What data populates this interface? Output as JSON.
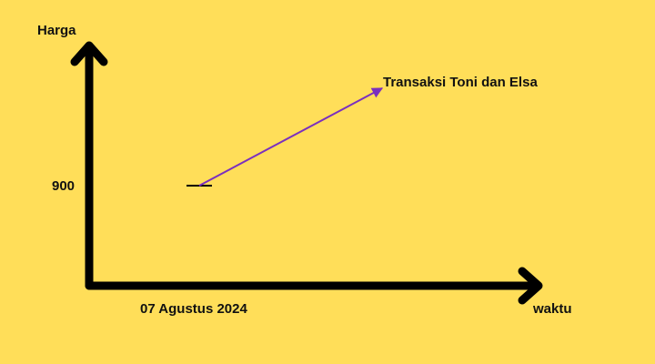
{
  "labels": {
    "y_axis": "Harga",
    "x_axis": "waktu",
    "price": "900",
    "date": "07 Agustus 2024",
    "annotation": "Transaksi Toni dan Elsa"
  },
  "colors": {
    "background": "#FFDE59",
    "axis": "#000000",
    "arrow": "#7B2FBE",
    "text": "#111111"
  }
}
